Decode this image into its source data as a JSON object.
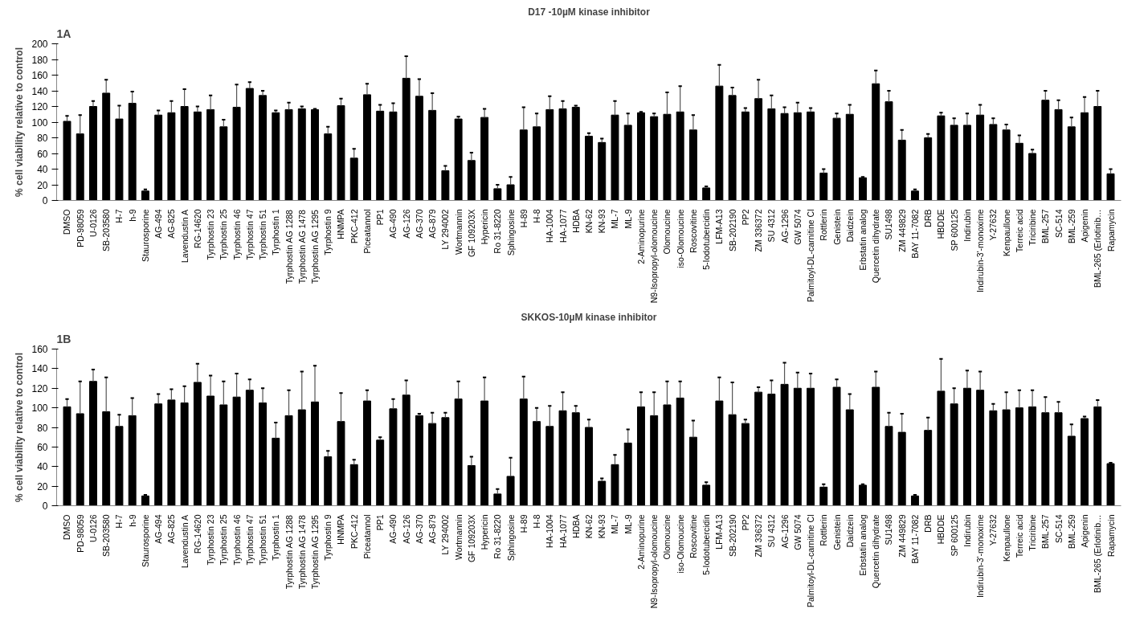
{
  "chart_data": [
    {
      "type": "bar",
      "title": "D17 -10µM kinase inhibitor",
      "ylabel": "% cell viability relative to control",
      "annotations": [
        "1A"
      ],
      "color": "#000000",
      "ylim": [
        0,
        200
      ],
      "yticks": [
        0,
        20,
        40,
        60,
        80,
        100,
        120,
        140,
        160,
        180,
        200
      ],
      "grid": false,
      "categories": [
        "DMSO",
        "PD-98059",
        "U-0126",
        "SB-203580",
        "H-7",
        "h-9",
        "Staurosporine",
        "AG-494",
        "AG-825",
        "Lavendustin A",
        "RG-14620",
        "Tyrphostin 23",
        "Tyrphostin 25",
        "Tyrphostin 46",
        "Tyrphostin 47",
        "Tyrphostin 51",
        "Tyrphostin 1",
        "Tyrphostin AG 1288",
        "Tyrphostin AG 1478",
        "Tyrphostin AG 1295",
        "Tyrphostin 9",
        "HNMPA",
        "PKC-412",
        "Piceatannol",
        "PP1",
        "AG-490",
        "AG-126",
        "AG-370",
        "AG-879",
        "LY 294002",
        "Wortmannin",
        "GF 109203X",
        "Hypericin",
        "Ro 31-8220",
        "Sphingosine",
        "H-89",
        "H-8",
        "HA-1004",
        "HA-1077",
        "HDBA",
        "KN-62",
        "KN-93",
        "ML-7",
        "ML-9",
        "2-Aminopurine",
        "N9-Isopropyl-olomoucine",
        "Olomoucine",
        "iso-Olomoucine",
        "Roscovitine",
        "5-Iodotubercidin",
        "LFM-A13",
        "SB-202190",
        "PP2",
        "ZM 336372",
        "SU 4312",
        "AG-1296",
        "GW 5074",
        "Palmitoyl-DL-carnitine Cl",
        "Rottlerin",
        "Genistein",
        "Daidzein",
        "Erbstatin analog",
        "Quercetin dihydrate",
        "SU1498",
        "ZM 449829",
        "BAY 11-7082",
        "DRB",
        "HBDDE",
        "SP 600125",
        "Indirubin",
        "Indirubin-3'-monoxime",
        "Y-27632",
        "Kenpaullone",
        "Terreic acid",
        "Triciribine",
        "BML-257",
        "SC-514",
        "BML-259",
        "Apigenin",
        "BML-265 (Erlotinib…",
        "Rapamycin"
      ],
      "values": [
        101,
        85,
        120,
        137,
        104,
        124,
        12,
        109,
        112,
        120,
        113,
        116,
        94,
        119,
        143,
        134,
        112,
        116,
        117,
        116,
        85,
        121,
        54,
        135,
        114,
        113,
        156,
        133,
        115,
        38,
        104,
        51,
        106,
        15,
        20,
        90,
        94,
        116,
        117,
        119,
        82,
        74,
        109,
        96,
        112,
        107,
        110,
        113,
        90,
        16,
        146,
        134,
        113,
        130,
        117,
        111,
        112,
        113,
        35,
        105,
        110,
        29,
        149,
        126,
        77,
        12,
        80,
        108,
        96,
        96,
        109,
        97,
        90,
        73,
        60,
        128,
        116,
        94,
        112,
        120,
        34
      ],
      "errors": [
        [
          101,
          108
        ],
        [
          85,
          109
        ],
        [
          120,
          127
        ],
        [
          137,
          154
        ],
        [
          104,
          121
        ],
        [
          124,
          139
        ],
        [
          12,
          14
        ],
        [
          109,
          115
        ],
        [
          112,
          127
        ],
        [
          120,
          142
        ],
        [
          113,
          120
        ],
        [
          116,
          134
        ],
        [
          94,
          103
        ],
        [
          119,
          148
        ],
        [
          143,
          151
        ],
        [
          134,
          140
        ],
        [
          112,
          115
        ],
        [
          116,
          125
        ],
        [
          117,
          120
        ],
        [
          116,
          117
        ],
        [
          85,
          94
        ],
        [
          121,
          130
        ],
        [
          54,
          66
        ],
        [
          135,
          149
        ],
        [
          114,
          122
        ],
        [
          113,
          124
        ],
        [
          156,
          184
        ],
        [
          133,
          155
        ],
        [
          115,
          137
        ],
        [
          38,
          44
        ],
        [
          104,
          107
        ],
        [
          51,
          61
        ],
        [
          106,
          117
        ],
        [
          15,
          20
        ],
        [
          20,
          30
        ],
        [
          90,
          119
        ],
        [
          94,
          111
        ],
        [
          116,
          133
        ],
        [
          117,
          127
        ],
        [
          119,
          121
        ],
        [
          82,
          86
        ],
        [
          74,
          79
        ],
        [
          109,
          127
        ],
        [
          96,
          111
        ],
        [
          112,
          113
        ],
        [
          107,
          111
        ],
        [
          110,
          138
        ],
        [
          113,
          146
        ],
        [
          90,
          109
        ],
        [
          16,
          18
        ],
        [
          146,
          173
        ],
        [
          134,
          144
        ],
        [
          113,
          118
        ],
        [
          130,
          154
        ],
        [
          117,
          134
        ],
        [
          111,
          119
        ],
        [
          112,
          125
        ],
        [
          113,
          118
        ],
        [
          35,
          40
        ],
        [
          105,
          111
        ],
        [
          110,
          122
        ],
        [
          29,
          30
        ],
        [
          149,
          166
        ],
        [
          126,
          140
        ],
        [
          77,
          90
        ],
        [
          12,
          14
        ],
        [
          80,
          85
        ],
        [
          108,
          112
        ],
        [
          96,
          105
        ],
        [
          96,
          111
        ],
        [
          109,
          122
        ],
        [
          97,
          105
        ],
        [
          90,
          97
        ],
        [
          73,
          83
        ],
        [
          60,
          65
        ],
        [
          128,
          140
        ],
        [
          116,
          128
        ],
        [
          94,
          106
        ],
        [
          112,
          132
        ],
        [
          120,
          140
        ],
        [
          34,
          40
        ]
      ]
    },
    {
      "type": "bar",
      "title": "SKKOS-10µM kinase inhibitor",
      "ylabel": "% cell viability relative to control",
      "annotations": [
        "1B"
      ],
      "color": "#000000",
      "ylim": [
        0,
        160
      ],
      "yticks": [
        0,
        20,
        40,
        60,
        80,
        100,
        120,
        140,
        160
      ],
      "grid": false,
      "categories": [
        "DMSO",
        "PD-98059",
        "U-0126",
        "SB-203580",
        "H-7",
        "h-9",
        "Staurosporine",
        "AG-494",
        "AG-825",
        "Lavendustin A",
        "RG-14620",
        "Tyrphostin 23",
        "Tyrphostin 25",
        "Tyrphostin 46",
        "Tyrphostin 47",
        "Tyrphostin 51",
        "Tyrphostin 1",
        "Tyrphostin AG 1288",
        "Tyrphostin AG 1478",
        "Tyrphostin AG 1295",
        "Tyrphostin 9",
        "HNMPA",
        "PKC-412",
        "Piceatannol",
        "PP1",
        "AG-490",
        "AG-126",
        "AG-370",
        "AG-879",
        "LY 294002",
        "Wortmannin",
        "GF 109203X",
        "Hypericin",
        "Ro 31-8220",
        "Sphingosine",
        "H-89",
        "H-8",
        "HA-1004",
        "HA-1077",
        "HDBA",
        "KN-62",
        "KN-93",
        "ML-7",
        "ML-9",
        "2-Aminopurine",
        "N9-Isopropyl-olomoucine",
        "Olomoucine",
        "iso-Olomoucine",
        "Roscovitine",
        "5-Iodotubercidin",
        "LFM-A13",
        "SB-202190",
        "PP2",
        "ZM 336372",
        "SU 4312",
        "AG-1296",
        "GW 5074",
        "Palmitoyl-DL-carnitine Cl",
        "Rottlerin",
        "Genistein",
        "Daidzein",
        "Erbstatin analog",
        "Quercetin dihydrate",
        "SU1498",
        "ZM 449829",
        "BAY 11-7082",
        "DRB",
        "HBDDE",
        "SP 600125",
        "Indirubin",
        "Indirubin-3'-monoxime",
        "Y-27632",
        "Kenpaullone",
        "Terreic acid",
        "Triciribine",
        "BML-257",
        "SC-514",
        "BML-259",
        "Apigenin",
        "BML-265 (Erlotinib…",
        "Rapamycin"
      ],
      "values": [
        101,
        94,
        127,
        96,
        81,
        92,
        10,
        104,
        108,
        105,
        126,
        112,
        103,
        111,
        118,
        105,
        69,
        92,
        98,
        106,
        50,
        86,
        42,
        107,
        67,
        99,
        113,
        92,
        84,
        90,
        109,
        41,
        107,
        12,
        30,
        109,
        86,
        81,
        97,
        95,
        80,
        25,
        42,
        64,
        101,
        92,
        103,
        110,
        70,
        21,
        107,
        93,
        84,
        116,
        114,
        124,
        120,
        120,
        19,
        121,
        98,
        21,
        121,
        81,
        75,
        10,
        77,
        117,
        104,
        120,
        118,
        97,
        98,
        100,
        101,
        95,
        95,
        71,
        89,
        101,
        43
      ],
      "errors": [
        [
          101,
          109
        ],
        [
          94,
          127
        ],
        [
          127,
          139
        ],
        [
          96,
          131
        ],
        [
          81,
          93
        ],
        [
          92,
          110
        ],
        [
          10,
          11
        ],
        [
          104,
          114
        ],
        [
          108,
          119
        ],
        [
          105,
          122
        ],
        [
          126,
          145
        ],
        [
          112,
          133
        ],
        [
          103,
          127
        ],
        [
          111,
          135
        ],
        [
          118,
          129
        ],
        [
          105,
          120
        ],
        [
          69,
          85
        ],
        [
          92,
          118
        ],
        [
          98,
          137
        ],
        [
          106,
          143
        ],
        [
          50,
          56
        ],
        [
          86,
          115
        ],
        [
          42,
          47
        ],
        [
          107,
          118
        ],
        [
          67,
          70
        ],
        [
          99,
          109
        ],
        [
          113,
          128
        ],
        [
          92,
          94
        ],
        [
          84,
          95
        ],
        [
          90,
          95
        ],
        [
          109,
          127
        ],
        [
          41,
          50
        ],
        [
          107,
          131
        ],
        [
          12,
          17
        ],
        [
          30,
          49
        ],
        [
          109,
          132
        ],
        [
          86,
          100
        ],
        [
          81,
          102
        ],
        [
          97,
          116
        ],
        [
          95,
          102
        ],
        [
          80,
          88
        ],
        [
          25,
          28
        ],
        [
          42,
          52
        ],
        [
          64,
          78
        ],
        [
          101,
          116
        ],
        [
          92,
          116
        ],
        [
          103,
          127
        ],
        [
          110,
          127
        ],
        [
          70,
          87
        ],
        [
          21,
          24
        ],
        [
          107,
          131
        ],
        [
          93,
          126
        ],
        [
          84,
          88
        ],
        [
          116,
          121
        ],
        [
          114,
          128
        ],
        [
          124,
          146
        ],
        [
          120,
          136
        ],
        [
          120,
          135
        ],
        [
          19,
          22
        ],
        [
          121,
          129
        ],
        [
          98,
          114
        ],
        [
          21,
          22
        ],
        [
          121,
          137
        ],
        [
          81,
          95
        ],
        [
          75,
          94
        ],
        [
          10,
          11
        ],
        [
          77,
          90
        ],
        [
          117,
          150
        ],
        [
          104,
          120
        ],
        [
          120,
          138
        ],
        [
          118,
          137
        ],
        [
          97,
          104
        ],
        [
          98,
          116
        ],
        [
          100,
          118
        ],
        [
          101,
          118
        ],
        [
          95,
          111
        ],
        [
          95,
          106
        ],
        [
          71,
          83
        ],
        [
          89,
          91
        ],
        [
          101,
          108
        ],
        [
          43,
          44
        ]
      ]
    }
  ]
}
